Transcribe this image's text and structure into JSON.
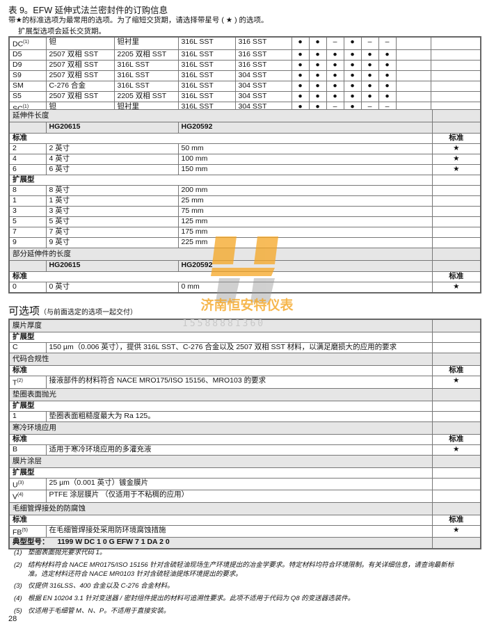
{
  "header": {
    "title": "表 9。EFW 延伸式法兰密封件的订购信息",
    "note1": "带★的标准选项为最常用的选项。为了缩短交货期，请选择带星号 ( ★ ) 的选项。",
    "note2": "扩展型选项会延长交货期。"
  },
  "materials": [
    {
      "code": "DC",
      "sup": "(1)",
      "c2": "钽",
      "c3": "钽衬里",
      "c4": "316L SST",
      "c5": "316 SST",
      "marks": [
        "●",
        "●",
        "–",
        "●",
        "–",
        "–"
      ]
    },
    {
      "code": "D5",
      "sup": "",
      "c2": "2507 双相 SST",
      "c3": "2205 双相 SST",
      "c4": "316L SST",
      "c5": "316 SST",
      "marks": [
        "●",
        "●",
        "●",
        "●",
        "●",
        "●"
      ]
    },
    {
      "code": "D9",
      "sup": "",
      "c2": "2507 双相 SST",
      "c3": "316L SST",
      "c4": "316L SST",
      "c5": "316 SST",
      "marks": [
        "●",
        "●",
        "●",
        "●",
        "●",
        "●"
      ]
    },
    {
      "code": "S9",
      "sup": "",
      "c2": "2507 双相 SST",
      "c3": "316L SST",
      "c4": "316L SST",
      "c5": "304 SST",
      "marks": [
        "●",
        "●",
        "●",
        "●",
        "●",
        "●"
      ]
    },
    {
      "code": "SM",
      "sup": "",
      "c2": "C-276 合金",
      "c3": "316L SST",
      "c4": "316L SST",
      "c5": "304 SST",
      "marks": [
        "●",
        "●",
        "●",
        "●",
        "●",
        "●"
      ]
    },
    {
      "code": "S5",
      "sup": "",
      "c2": "2507 双相 SST",
      "c3": "2205 双相 SST",
      "c4": "316L SST",
      "c5": "304 SST",
      "marks": [
        "●",
        "●",
        "●",
        "●",
        "●",
        "●"
      ]
    },
    {
      "code": "SC",
      "sup": "(1)",
      "c2": "钽",
      "c3": "钽衬里",
      "c4": "316L SST",
      "c5": "304 SST",
      "marks": [
        "●",
        "●",
        "–",
        "●",
        "–",
        "–"
      ]
    }
  ],
  "extension": {
    "title": "延伸件长度",
    "col1": "HG20615",
    "col2": "HG20592",
    "standard_label": "标准",
    "expanded_label": "扩展型",
    "star": "★",
    "standard": [
      [
        "2",
        "2 英寸",
        "50 mm"
      ],
      [
        "4",
        "4 英寸",
        "100 mm"
      ],
      [
        "6",
        "6 英寸",
        "150 mm"
      ]
    ],
    "expanded": [
      [
        "8",
        "8 英寸",
        "200 mm"
      ],
      [
        "1",
        "1 英寸",
        "25 mm"
      ],
      [
        "3",
        "3 英寸",
        "75 mm"
      ],
      [
        "5",
        "5 英寸",
        "125 mm"
      ],
      [
        "7",
        "7 英寸",
        "175 mm"
      ],
      [
        "9",
        "9 英寸",
        "225 mm"
      ]
    ]
  },
  "partial": {
    "title": "部分延伸件的长度",
    "col1": "HG20615",
    "col2": "HG20592",
    "standard_label": "标准",
    "star": "★",
    "standard": [
      [
        "0",
        "0 英寸",
        "0 mm"
      ]
    ]
  },
  "options": {
    "title": "可选项",
    "subtitle": "（与前面选定的选项一起交付）",
    "groups": [
      {
        "title": "膜片厚度",
        "type": "扩展型",
        "rows": [
          {
            "code": "C",
            "sup": "",
            "desc": "150 µm（0.006 英寸），提供 316L SST、C-276 合金以及 2507 双相 SST 材料，以满足磨损大的应用的要求",
            "star": ""
          }
        ]
      },
      {
        "title": "代码合规性",
        "type": "标准",
        "rows": [
          {
            "code": "T",
            "sup": "(2)",
            "desc": "接液部件的材料符合 NACE MRO175/ISO 15156、MRO103 的要求",
            "star": "★"
          }
        ]
      },
      {
        "title": "垫圈表面抛光",
        "type": "扩展型",
        "rows": [
          {
            "code": "1",
            "sup": "",
            "desc": "垫圈表面粗糙度最大为 Ra 125。",
            "star": ""
          }
        ]
      },
      {
        "title": "寒冷环境应用",
        "type": "标准",
        "rows": [
          {
            "code": "B",
            "sup": "",
            "desc": "适用于寒冷环境应用的多灌充液",
            "star": "★"
          }
        ]
      },
      {
        "title": "膜片涂层",
        "type": "扩展型",
        "rows": [
          {
            "code": "U",
            "sup": "(3)",
            "desc": "25 µm（0.001 英寸）镀金膜片",
            "star": ""
          },
          {
            "code": "V",
            "sup": "(4)",
            "desc": "PTFE 涂层膜片 （仅适用于不粘稠的应用）",
            "star": ""
          }
        ]
      },
      {
        "title": "毛细管焊接处的防腐蚀",
        "type": "标准",
        "rows": [
          {
            "code": "FB",
            "sup": "(5)",
            "desc": "在毛细管焊接处采用防环境腐蚀措施",
            "star": "★"
          }
        ]
      }
    ],
    "typical_label": "典型型号：",
    "typical_value": "1199 W DC 1 0 G EFW 7 1 DA 2 0"
  },
  "footnotes": [
    {
      "n": "(1)",
      "text": "垫圈表面抛光要求代码 1。"
    },
    {
      "n": "(2)",
      "text": "结构材料符合 NACE MR0175/ISO 15156 针对含硫轻油现场生产环境提出的冶金学要求。特定材料均符合环境限制。有关详细信息，请查询最新标准。选定材料还符合 NACE MR0103 针对含硫轻油提炼环境提出的要求。"
    },
    {
      "n": "(3)",
      "text": "仅提供 316LSS、400 合金以及 C-276 合金材料。"
    },
    {
      "n": "(4)",
      "text": "根据 EN 10204 3.1 针对变送器 / 密封组件提出的材料可追溯性要求。此项不适用于代码为 Q8 的变送器选装件。"
    },
    {
      "n": "(5)",
      "text": "仅适用于毛细管 M、N、P。不适用于直接安装。"
    }
  ],
  "page_number": "28",
  "watermark": {
    "company": "济南恒安特仪表",
    "phone": "15588881360",
    "color": "#f5a623"
  }
}
